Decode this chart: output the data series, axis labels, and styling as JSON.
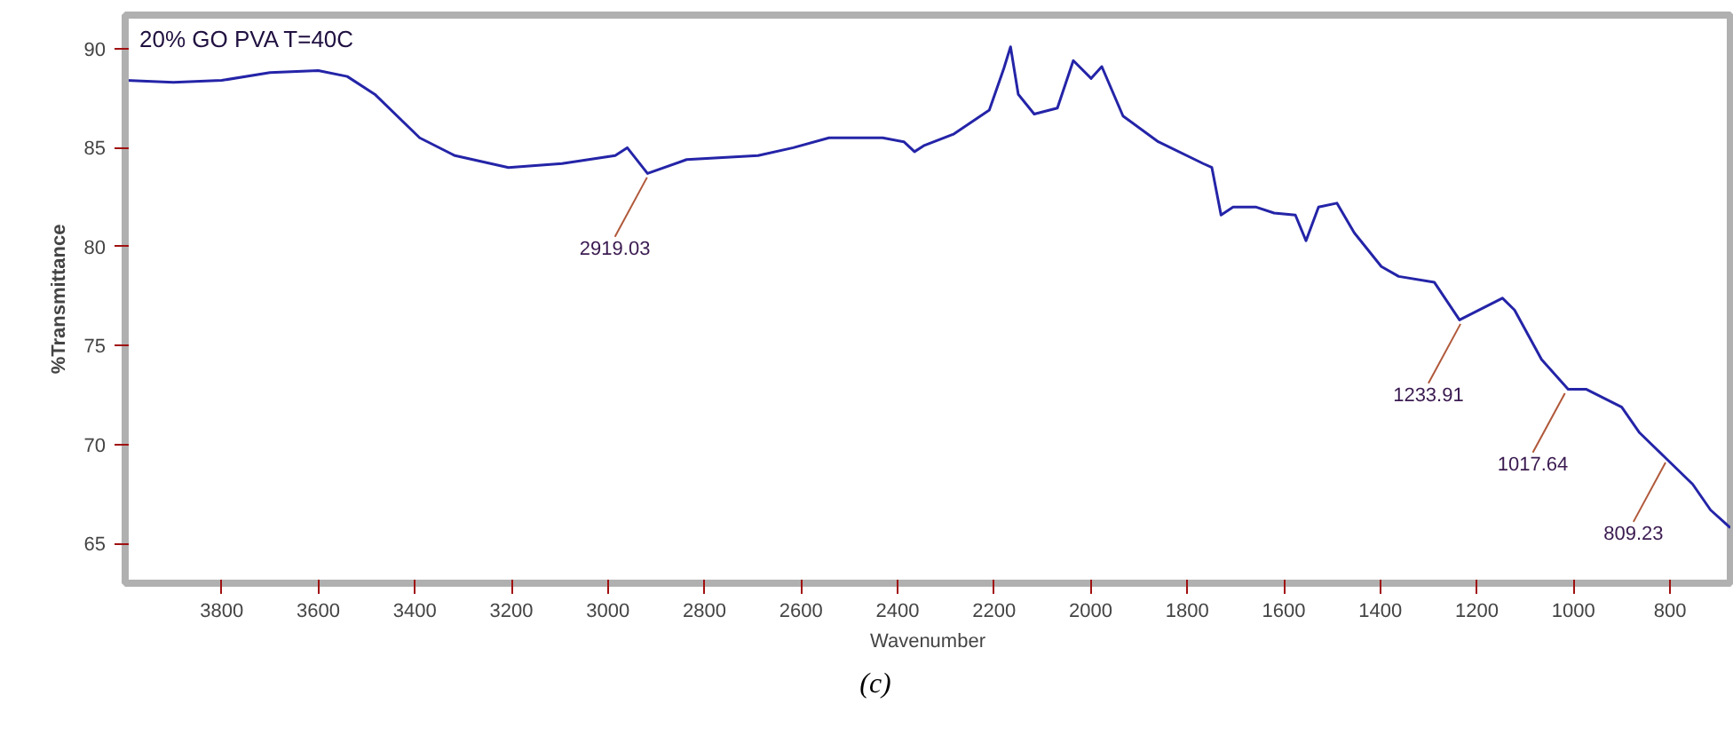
{
  "chart_data": {
    "type": "line",
    "title": "20% GO PVA T=40C",
    "xlabel": "Wavenumber",
    "ylabel": "%Transmittance",
    "x": [
      3999,
      3900,
      3800,
      3700,
      3600,
      3540,
      3483,
      3390,
      3317,
      3206,
      3095,
      2985,
      2960,
      2918,
      2837,
      2689,
      2616,
      2542,
      2431,
      2387,
      2365,
      2346,
      2283,
      2210,
      2180,
      2166,
      2150,
      2117,
      2069,
      2036,
      1999,
      1977,
      1933,
      1860,
      1767,
      1749,
      1730,
      1705,
      1657,
      1620,
      1576,
      1554,
      1528,
      1490,
      1454,
      1398,
      1362,
      1288,
      1236,
      1147,
      1122,
      1066,
      1011,
      974,
      900,
      863,
      808,
      753,
      716,
      675
    ],
    "series": [
      {
        "color": "#2424a8",
        "values": [
          88.4,
          88.3,
          88.4,
          88.8,
          88.9,
          88.6,
          87.7,
          85.5,
          84.6,
          84.0,
          84.2,
          84.6,
          85.0,
          83.7,
          84.4,
          84.6,
          85.0,
          85.5,
          85.5,
          85.3,
          84.8,
          85.1,
          85.7,
          86.9,
          89.0,
          90.1,
          87.7,
          86.7,
          87.0,
          89.4,
          88.5,
          89.1,
          86.6,
          85.3,
          84.2,
          84.0,
          81.6,
          82.0,
          82.0,
          81.7,
          81.6,
          80.3,
          82.0,
          82.2,
          80.7,
          79.0,
          78.5,
          78.2,
          76.3,
          77.4,
          76.8,
          74.3,
          72.8,
          72.8,
          71.9,
          70.6,
          69.3,
          68.0,
          66.7,
          65.8
        ]
      }
    ],
    "annotations": [
      {
        "text": "2919.03",
        "x": 2919.03,
        "y": 83.7
      },
      {
        "text": "1233.91",
        "x": 1233.91,
        "y": 76.3
      },
      {
        "text": "1017.64",
        "x": 1017.64,
        "y": 72.8
      },
      {
        "text": "809.23",
        "x": 809.23,
        "y": 69.3
      },
      "(c)"
    ],
    "xlim": [
      4000,
      675
    ],
    "ylim": [
      63,
      91.7
    ],
    "xticks": [
      3800,
      3600,
      3400,
      3200,
      3000,
      2800,
      2600,
      2400,
      2200,
      2000,
      1800,
      1600,
      1400,
      1200,
      1000,
      800
    ],
    "yticks": [
      65,
      70,
      75,
      80,
      85,
      90
    ],
    "grid": false,
    "line_style": "solid",
    "marker": "none"
  }
}
